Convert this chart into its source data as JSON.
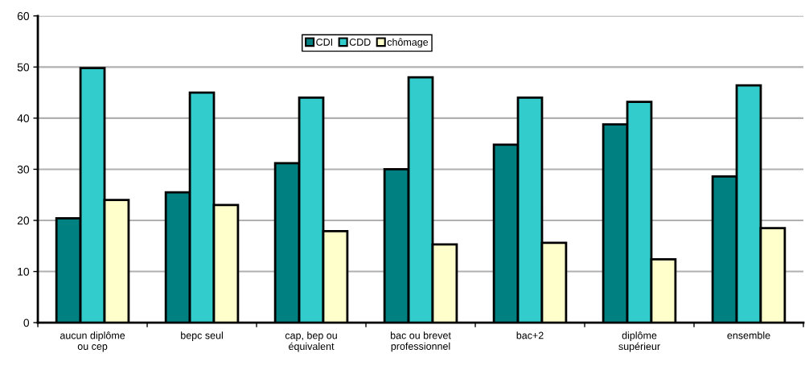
{
  "chart_data": {
    "type": "bar",
    "categories": [
      "aucun diplôme\nou cep",
      "bepc seul",
      "cap, bep ou\néquivalent",
      "bac ou brevet\nprofessionnel",
      "bac+2",
      "diplôme\nsupérieur",
      "ensemble"
    ],
    "series": [
      {
        "name": "CDI",
        "color": "#008080",
        "values": [
          20.4,
          25.5,
          31.2,
          30,
          34.8,
          38.8,
          28.6
        ]
      },
      {
        "name": "CDD",
        "color": "#33cccc",
        "values": [
          49.8,
          45,
          44,
          48,
          44,
          43.2,
          46.4
        ]
      },
      {
        "name": "chômage",
        "color": "#ffffcc",
        "values": [
          24,
          23,
          17.9,
          15.3,
          15.6,
          12.4,
          18.5
        ]
      }
    ],
    "ylim": [
      0,
      60
    ],
    "yticks": [
      0,
      10,
      20,
      30,
      40,
      50,
      60
    ],
    "grid": "y",
    "legend": "top"
  }
}
